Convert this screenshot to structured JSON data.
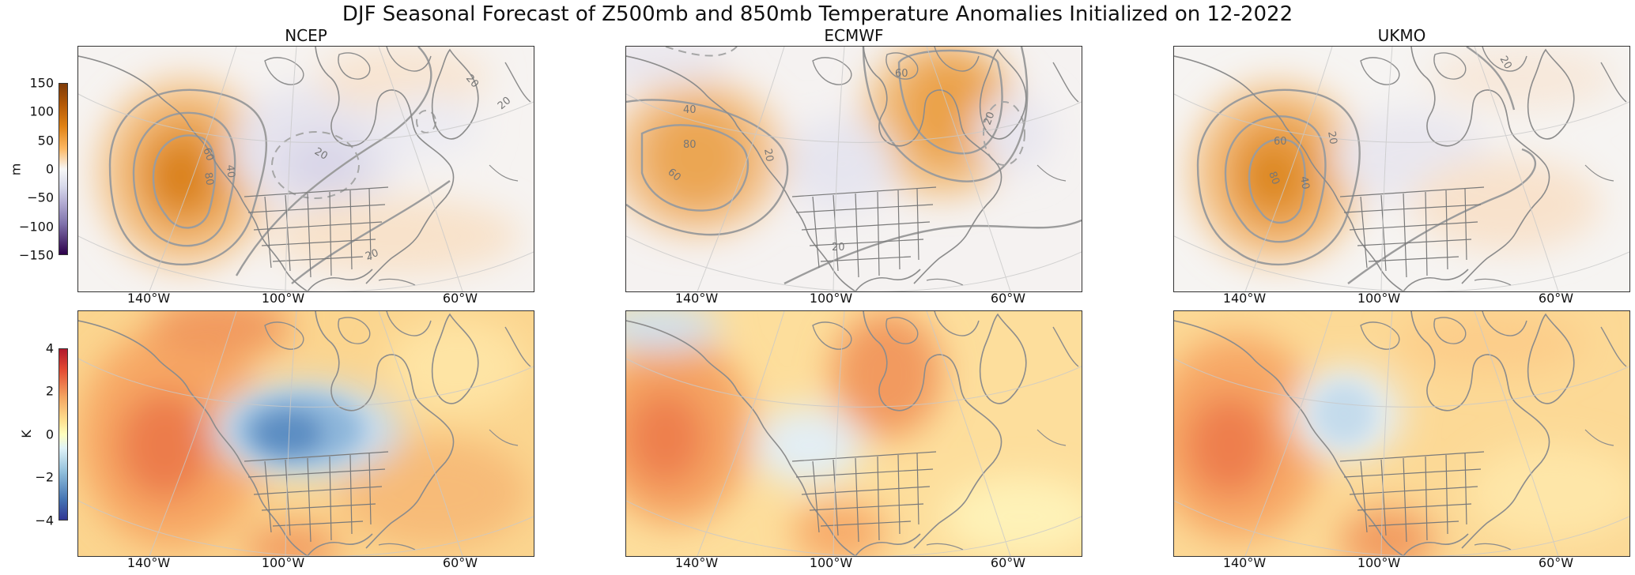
{
  "title": "DJF Seasonal Forecast of Z500mb and 850mb Temperature Anomalies Initialized on 12-2022",
  "columns": [
    "NCEP",
    "ECMWF",
    "UKMO"
  ],
  "lon_labels": [
    "140°W",
    "100°W",
    "60°W"
  ],
  "rows": [
    {
      "variable": "Z500mb anomaly",
      "colorbar": {
        "label": "m",
        "ticks": [
          "150",
          "100",
          "50",
          "0",
          "−50",
          "−100",
          "−150"
        ],
        "colors": [
          "#7f3b08",
          "#e08214",
          "#fdb863",
          "#f7f7f7",
          "#b2abd2",
          "#8073ac",
          "#2d004b"
        ]
      },
      "contour_labels": {
        "NCEP": [
          "60",
          "80",
          "40",
          "20",
          "20",
          "20",
          "20"
        ],
        "ECMWF": [
          "40",
          "80",
          "60",
          "60",
          "20",
          "20",
          "20"
        ],
        "UKMO": [
          "60",
          "80",
          "40",
          "20",
          "20"
        ]
      }
    },
    {
      "variable": "850mb temperature anomaly",
      "colorbar": {
        "label": "K",
        "ticks": [
          "4",
          "2",
          "0",
          "−2",
          "−4"
        ],
        "colors": [
          "#b2182b",
          "#ef8a62",
          "#fee090",
          "#ffffff",
          "#91bfdb",
          "#4575b4",
          "#313695"
        ]
      }
    }
  ]
}
